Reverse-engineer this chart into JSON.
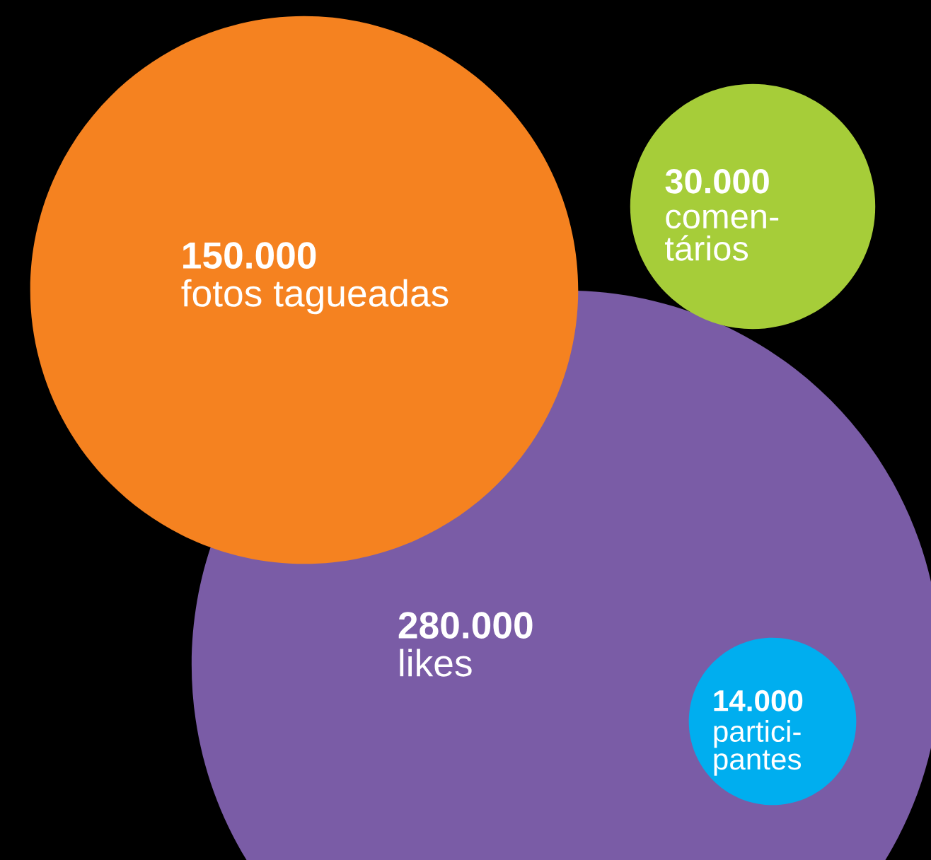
{
  "chart_data": {
    "type": "other",
    "categories": [
      "likes",
      "fotos tagueadas",
      "comen-\ntários",
      "partici-\npantes"
    ],
    "values": [
      280000,
      150000,
      30000,
      14000
    ],
    "value_labels": [
      "280.000",
      "150.000",
      "30.000",
      "14.000"
    ],
    "colors": [
      "#7a5ca6",
      "#f58220",
      "#a6cd39",
      "#00aeef"
    ]
  }
}
